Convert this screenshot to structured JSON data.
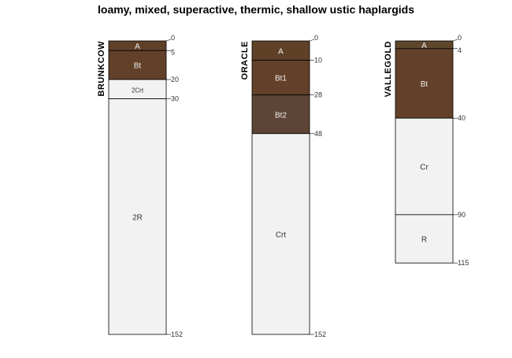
{
  "chart_data": {
    "type": "soil-profile",
    "title": "loamy, mixed, superactive, thermic, shallow ustic haplargids",
    "depth_unit": "cm",
    "max_depth": 152,
    "profiles": [
      {
        "id": "BRUNKCOW",
        "horizons": [
          {
            "name": "A",
            "top": 0,
            "bottom": 5,
            "color": "#5f4128"
          },
          {
            "name": "Bt",
            "top": 5,
            "bottom": 20,
            "color": "#634029"
          },
          {
            "name": "2Crt",
            "top": 20,
            "bottom": 30,
            "color": "#f2f2f2"
          },
          {
            "name": "2R",
            "top": 30,
            "bottom": 152,
            "color": "#f2f2f2"
          }
        ],
        "depth_labels": [
          "0",
          "5",
          "20",
          "30",
          "152"
        ]
      },
      {
        "id": "ORACLE",
        "horizons": [
          {
            "name": "A",
            "top": 0,
            "bottom": 10,
            "color": "#5f4128"
          },
          {
            "name": "Bt1",
            "top": 10,
            "bottom": 28,
            "color": "#634029"
          },
          {
            "name": "Bt2",
            "top": 28,
            "bottom": 48,
            "color": "#5d4436"
          },
          {
            "name": "Crt",
            "top": 48,
            "bottom": 152,
            "color": "#f2f2f2"
          }
        ],
        "depth_labels": [
          "0",
          "10",
          "28",
          "48",
          "152"
        ]
      },
      {
        "id": "VALLEGOLD",
        "horizons": [
          {
            "name": "A",
            "top": 0,
            "bottom": 4,
            "color": "#5e472b"
          },
          {
            "name": "Bt",
            "top": 4,
            "bottom": 40,
            "color": "#634029"
          },
          {
            "name": "Cr",
            "top": 40,
            "bottom": 90,
            "color": "#f2f2f2"
          },
          {
            "name": "R",
            "top": 90,
            "bottom": 115,
            "color": "#f2f2f2"
          }
        ],
        "depth_labels": [
          "0",
          "4",
          "40",
          "90",
          "115"
        ]
      }
    ]
  }
}
